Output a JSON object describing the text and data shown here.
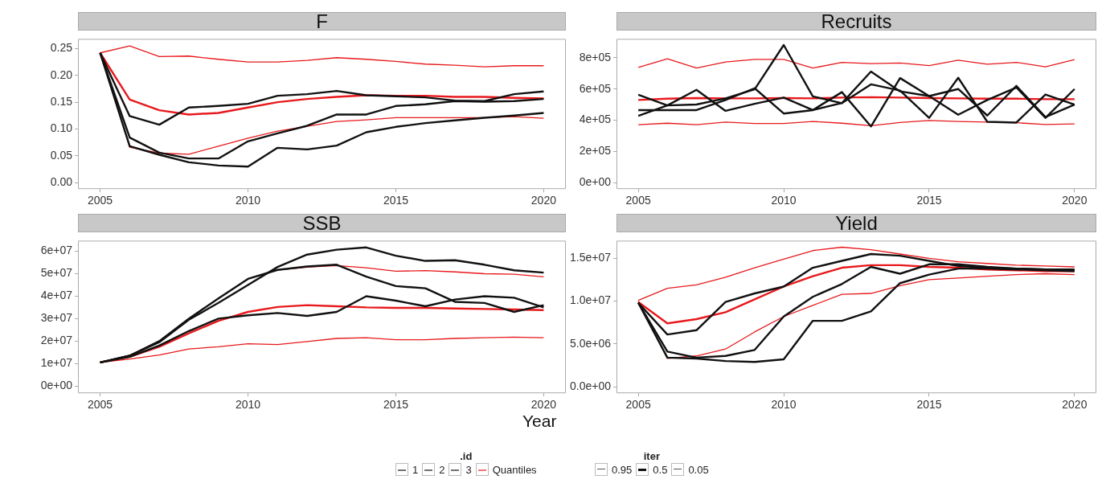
{
  "chart_data": [
    {
      "type": "line",
      "title": "F",
      "x": [
        2005,
        2006,
        2007,
        2008,
        2009,
        2010,
        2011,
        2012,
        2013,
        2014,
        2015,
        2016,
        2017,
        2018,
        2019,
        2020
      ],
      "xlim": [
        2004.25,
        2020.75
      ],
      "xticks": [
        2005,
        2010,
        2015,
        2020
      ],
      "ylim": [
        -0.012,
        0.268
      ],
      "yticks": [
        {
          "value": 0,
          "label": "0.00"
        },
        {
          "value": 0.05,
          "label": "0.05"
        },
        {
          "value": 0.1,
          "label": "0.10"
        },
        {
          "value": 0.15,
          "label": "0.15"
        },
        {
          "value": 0.2,
          "label": "0.20"
        },
        {
          "value": 0.25,
          "label": "0.25"
        }
      ],
      "grid": false,
      "legend": "bottom",
      "legend_title": ".id",
      "line_style": "solid",
      "marker": "none",
      "series": [
        {
          "name": "1",
          "color": "#111111",
          "values": [
            0.242,
            0.124,
            0.108,
            0.14,
            0.143,
            0.147,
            0.162,
            0.165,
            0.171,
            0.163,
            0.161,
            0.159,
            0.153,
            0.152,
            0.165,
            0.17
          ]
        },
        {
          "name": "2",
          "color": "#111111",
          "values": [
            0.242,
            0.084,
            0.056,
            0.045,
            0.045,
            0.077,
            0.092,
            0.106,
            0.127,
            0.127,
            0.143,
            0.146,
            0.152,
            0.151,
            0.152,
            0.156
          ]
        },
        {
          "name": "3",
          "color": "#111111",
          "values": [
            0.242,
            0.068,
            0.052,
            0.038,
            0.032,
            0.03,
            0.065,
            0.062,
            0.069,
            0.094,
            0.104,
            0.111,
            0.116,
            0.121,
            0.125,
            0.13
          ]
        },
        {
          "name": "Quantiles",
          "color": "#e8191c",
          "values": [
            0.242,
            0.255,
            0.235,
            0.236,
            0.23,
            0.225,
            0.225,
            0.228,
            0.233,
            0.23,
            0.226,
            0.221,
            0.219,
            0.216,
            0.218,
            0.218
          ]
        },
        {
          "color": "#e8191c",
          "values": [
            0.242,
            0.155,
            0.135,
            0.127,
            0.13,
            0.14,
            0.15,
            0.156,
            0.16,
            0.163,
            0.162,
            0.162,
            0.16,
            0.16,
            0.158,
            0.157
          ]
        },
        {
          "color": "#e8191c",
          "values": [
            0.242,
            0.066,
            0.055,
            0.053,
            0.068,
            0.083,
            0.096,
            0.105,
            0.114,
            0.117,
            0.121,
            0.121,
            0.121,
            0.121,
            0.123,
            0.12
          ]
        }
      ]
    },
    {
      "type": "line",
      "title": "Recruits",
      "x": [
        2005,
        2006,
        2007,
        2008,
        2009,
        2010,
        2011,
        2012,
        2013,
        2014,
        2015,
        2016,
        2017,
        2018,
        2019,
        2020
      ],
      "xlim": [
        2004.25,
        2020.75
      ],
      "xticks": [
        2005,
        2010,
        2015,
        2020
      ],
      "ylim": [
        -41000,
        921000
      ],
      "yticks": [
        {
          "value": 0,
          "label": "0e+00"
        },
        {
          "value": 200000,
          "label": "2e+05"
        },
        {
          "value": 400000,
          "label": "4e+05"
        },
        {
          "value": 600000,
          "label": "6e+05"
        },
        {
          "value": 800000,
          "label": "8e+05"
        }
      ],
      "grid": false,
      "line_style": "solid",
      "marker": "none",
      "series": [
        {
          "name": "1",
          "color": "#111111",
          "values": [
            563000,
            495000,
            501000,
            540000,
            598000,
            882000,
            553000,
            509000,
            712000,
            585000,
            555000,
            600000,
            430000,
            620000,
            420000,
            500000
          ]
        },
        {
          "name": "2",
          "color": "#111111",
          "values": [
            465000,
            465000,
            465000,
            530000,
            605000,
            443000,
            465000,
            580000,
            360000,
            670000,
            555000,
            435000,
            530000,
            610000,
            415000,
            600000
          ]
        },
        {
          "name": "3",
          "color": "#111111",
          "values": [
            428000,
            495000,
            595000,
            460000,
            505000,
            545000,
            465000,
            510000,
            630000,
            590000,
            415000,
            672000,
            390000,
            385000,
            565000,
            500000
          ]
        },
        {
          "name": "Quantiles",
          "color": "#e8191c",
          "values": [
            738000,
            794000,
            734000,
            773000,
            790000,
            790000,
            734000,
            771000,
            763000,
            767000,
            750000,
            785000,
            759000,
            771000,
            742000,
            788000
          ]
        },
        {
          "color": "#e8191c",
          "values": [
            530000,
            538000,
            542000,
            540000,
            540000,
            542000,
            540000,
            545000,
            548000,
            545000,
            542000,
            540000,
            538000,
            538000,
            535000,
            535000
          ]
        },
        {
          "color": "#e8191c",
          "values": [
            371000,
            381000,
            371000,
            388000,
            379000,
            379000,
            392000,
            381000,
            365000,
            386000,
            398000,
            392000,
            388000,
            384000,
            373000,
            377000
          ]
        }
      ]
    },
    {
      "type": "line",
      "title": "SSB",
      "xlabel": "Year",
      "x": [
        2005,
        2006,
        2007,
        2008,
        2009,
        2010,
        2011,
        2012,
        2013,
        2014,
        2015,
        2016,
        2017,
        2018,
        2019,
        2020
      ],
      "xlim": [
        2004.25,
        2020.75
      ],
      "xticks": [
        2005,
        2010,
        2015,
        2020
      ],
      "ylim": [
        -3200000,
        64700000
      ],
      "yticks": [
        {
          "value": 0,
          "label": "0e+00"
        },
        {
          "value": 10000000,
          "label": "1e+07"
        },
        {
          "value": 20000000,
          "label": "2e+07"
        },
        {
          "value": 30000000,
          "label": "3e+07"
        },
        {
          "value": 40000000,
          "label": "4e+07"
        },
        {
          "value": 50000000,
          "label": "5e+07"
        },
        {
          "value": 60000000,
          "label": "6e+07"
        }
      ],
      "grid": false,
      "line_style": "solid",
      "marker": "none",
      "series": [
        {
          "name": "1",
          "color": "#111111",
          "values": [
            10500000,
            13500000,
            19500000,
            29500000,
            37000000,
            45000000,
            53000000,
            58500000,
            60700000,
            61700000,
            58000000,
            55700000,
            56000000,
            54000000,
            51500000,
            50500000
          ]
        },
        {
          "name": "2",
          "color": "#111111",
          "values": [
            10500000,
            13500000,
            20000000,
            30000000,
            39000000,
            47700000,
            51700000,
            53200000,
            54000000,
            48700000,
            44500000,
            43500000,
            37500000,
            37000000,
            33000000,
            36000000
          ]
        },
        {
          "name": "3",
          "color": "#111111",
          "values": [
            10500000,
            13000000,
            18000000,
            24500000,
            30000000,
            31500000,
            32500000,
            31200000,
            33000000,
            40000000,
            38000000,
            35500000,
            38500000,
            40000000,
            39300000,
            35000000
          ]
        },
        {
          "name": "Quantiles",
          "color": "#e8191c",
          "values": [
            10500000,
            13700000,
            20000000,
            30000000,
            39000000,
            47700000,
            51700000,
            52900000,
            53600000,
            52600000,
            51100000,
            51400000,
            50800000,
            50000000,
            49800000,
            48600000
          ]
        },
        {
          "color": "#e8191c",
          "values": [
            10500000,
            13000000,
            17500000,
            23500000,
            29000000,
            33000000,
            35200000,
            36000000,
            35500000,
            35000000,
            34800000,
            34800000,
            34500000,
            34300000,
            34100000,
            33800000
          ]
        },
        {
          "color": "#e8191c",
          "values": [
            10500000,
            12000000,
            13800000,
            16500000,
            17500000,
            18800000,
            18500000,
            19800000,
            21200000,
            21500000,
            20600000,
            20600000,
            21200000,
            21500000,
            21800000,
            21500000
          ]
        }
      ]
    },
    {
      "type": "line",
      "title": "Yield",
      "x": [
        2005,
        2006,
        2007,
        2008,
        2009,
        2010,
        2011,
        2012,
        2013,
        2014,
        2015,
        2016,
        2017,
        2018,
        2019,
        2020
      ],
      "xlim": [
        2004.25,
        2020.75
      ],
      "xticks": [
        2005,
        2010,
        2015,
        2020
      ],
      "ylim": [
        -760000,
        17060000
      ],
      "yticks": [
        {
          "value": 0,
          "label": "0.0e+00"
        },
        {
          "value": 5000000,
          "label": "5.0e+06"
        },
        {
          "value": 10000000,
          "label": "1.0e+07"
        },
        {
          "value": 15000000,
          "label": "1.5e+07"
        }
      ],
      "grid": false,
      "line_style": "solid",
      "marker": "none",
      "series": [
        {
          "name": "1",
          "color": "#111111",
          "values": [
            9800000,
            6100000,
            6600000,
            9900000,
            10900000,
            11700000,
            13900000,
            14700000,
            15500000,
            15300000,
            14700000,
            14100000,
            13900000,
            13800000,
            13700000,
            13600000
          ]
        },
        {
          "name": "2",
          "color": "#111111",
          "values": [
            9800000,
            4100000,
            3400000,
            3600000,
            4300000,
            8200000,
            10500000,
            12000000,
            14000000,
            13200000,
            14300000,
            14300000,
            14000000,
            13800000,
            13700000,
            13700000
          ]
        },
        {
          "name": "3",
          "color": "#111111",
          "values": [
            9800000,
            3400000,
            3300000,
            3000000,
            2900000,
            3200000,
            7700000,
            7700000,
            8800000,
            12100000,
            13100000,
            13800000,
            13800000,
            13700000,
            13600000,
            13500000
          ]
        },
        {
          "name": "Quantiles",
          "color": "#e8191c",
          "values": [
            10100000,
            11500000,
            11900000,
            12800000,
            13900000,
            14900000,
            15900000,
            16300000,
            16000000,
            15500000,
            15000000,
            14600000,
            14400000,
            14200000,
            14100000,
            14000000
          ]
        },
        {
          "color": "#e8191c",
          "values": [
            9900000,
            7400000,
            7900000,
            8700000,
            10200000,
            11700000,
            12900000,
            13900000,
            14200000,
            14200000,
            14000000,
            13900000,
            13700000,
            13600000,
            13500000,
            13500000
          ]
        },
        {
          "color": "#e8191c",
          "values": [
            10000000,
            3300000,
            3600000,
            4400000,
            6400000,
            8200000,
            9500000,
            10800000,
            10900000,
            11800000,
            12500000,
            12700000,
            12900000,
            13100000,
            13200000,
            13100000
          ]
        }
      ]
    },
    {
      "type": "other",
      "legend_title": "iter",
      "categories": [
        "0.95",
        "0.5",
        "0.05"
      ]
    }
  ]
}
